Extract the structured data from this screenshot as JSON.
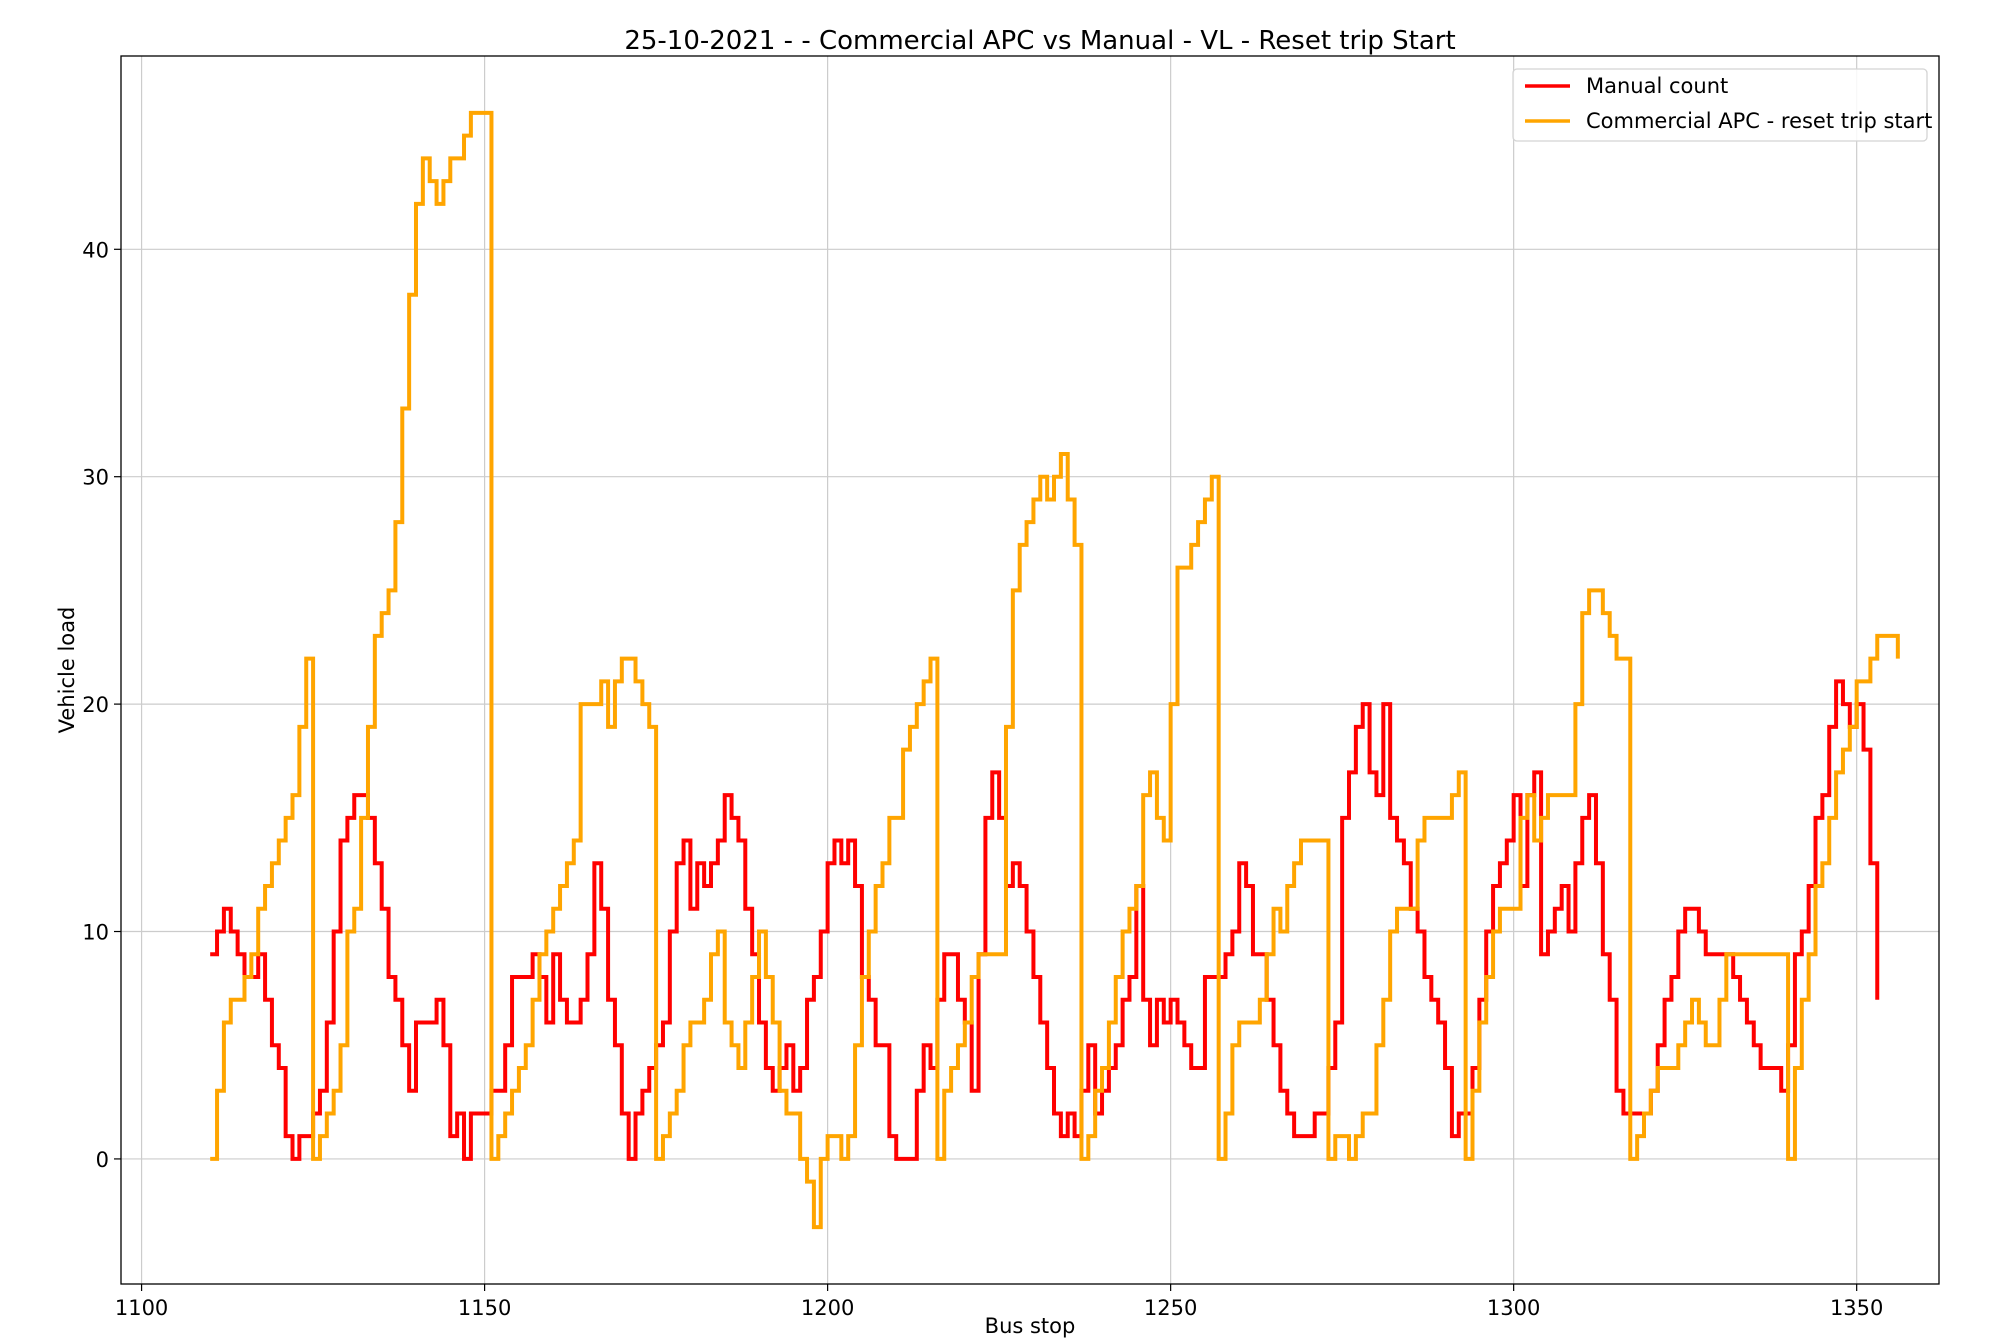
{
  "chart_data": {
    "type": "line",
    "step": true,
    "title": "25-10-2021 - - Commercial APC vs Manual - VL - Reset trip Start",
    "xlabel": "Bus stop",
    "ylabel": "Vehicle load",
    "xlim": [
      1097,
      1362
    ],
    "ylim": [
      -5.5,
      48.5
    ],
    "xticks": [
      1100,
      1150,
      1200,
      1250,
      1300,
      1350
    ],
    "yticks": [
      0,
      10,
      20,
      30,
      40
    ],
    "grid": true,
    "legend_position": "top-right",
    "series": [
      {
        "name": "Manual count",
        "color": "#ff0000",
        "x_start": 1110,
        "values": [
          9,
          10,
          11,
          10,
          9,
          8,
          8,
          9,
          7,
          5,
          4,
          1,
          0,
          1,
          1,
          2,
          3,
          6,
          10,
          14,
          15,
          16,
          16,
          15,
          13,
          11,
          8,
          7,
          5,
          3,
          6,
          6,
          6,
          7,
          5,
          1,
          2,
          0,
          2,
          2,
          2,
          3,
          3,
          5,
          8,
          8,
          8,
          9,
          8,
          6,
          9,
          7,
          6,
          6,
          7,
          9,
          13,
          11,
          7,
          5,
          2,
          0,
          2,
          3,
          4,
          5,
          6,
          10,
          13,
          14,
          11,
          13,
          12,
          13,
          14,
          16,
          15,
          14,
          11,
          9,
          6,
          4,
          3,
          4,
          5,
          3,
          4,
          7,
          8,
          10,
          13,
          14,
          13,
          14,
          12,
          8,
          7,
          5,
          5,
          1,
          0,
          0,
          0,
          3,
          5,
          4,
          7,
          9,
          9,
          7,
          6,
          3,
          9,
          15,
          17,
          15,
          12,
          13,
          12,
          10,
          8,
          6,
          4,
          2,
          1,
          2,
          1,
          3,
          5,
          2,
          3,
          4,
          5,
          7,
          8,
          12,
          7,
          5,
          7,
          6,
          7,
          6,
          5,
          4,
          4,
          8,
          8,
          8,
          9,
          10,
          13,
          12,
          9,
          9,
          7,
          5,
          3,
          2,
          1,
          1,
          1,
          2,
          2,
          4,
          6,
          15,
          17,
          19,
          20,
          17,
          16,
          20,
          15,
          14,
          13,
          11,
          10,
          8,
          7,
          6,
          4,
          1,
          2,
          2,
          4,
          7,
          10,
          12,
          13,
          14,
          16,
          12,
          16,
          17,
          9,
          10,
          11,
          12,
          10,
          13,
          15,
          16,
          13,
          9,
          7,
          3,
          2,
          2,
          2,
          2,
          3,
          5,
          7,
          8,
          10,
          11,
          11,
          10,
          9,
          9,
          9,
          9,
          8,
          7,
          6,
          5,
          4,
          4,
          4,
          3,
          5,
          9,
          10,
          12,
          15,
          16,
          19,
          21,
          20,
          19,
          20,
          18,
          13,
          7
        ]
      },
      {
        "name": "Commercial APC - reset trip start",
        "color": "#ffa500",
        "x_start": 1110,
        "values": [
          0,
          3,
          6,
          7,
          7,
          8,
          9,
          11,
          12,
          13,
          14,
          15,
          16,
          19,
          22,
          0,
          1,
          2,
          3,
          5,
          10,
          11,
          15,
          19,
          23,
          24,
          25,
          28,
          33,
          38,
          42,
          44,
          43,
          42,
          43,
          44,
          44,
          45,
          46,
          46,
          46,
          0,
          1,
          2,
          3,
          4,
          5,
          7,
          9,
          10,
          11,
          12,
          13,
          14,
          20,
          20,
          20,
          21,
          19,
          21,
          22,
          22,
          21,
          20,
          19,
          0,
          1,
          2,
          3,
          5,
          6,
          6,
          7,
          9,
          10,
          6,
          5,
          4,
          6,
          8,
          10,
          8,
          6,
          3,
          2,
          2,
          0,
          -1,
          -3,
          0,
          1,
          1,
          0,
          1,
          5,
          8,
          10,
          12,
          13,
          15,
          15,
          18,
          19,
          20,
          21,
          22,
          0,
          3,
          4,
          5,
          6,
          8,
          9,
          9,
          9,
          9,
          19,
          25,
          27,
          28,
          29,
          30,
          29,
          30,
          31,
          29,
          27,
          0,
          1,
          3,
          4,
          6,
          8,
          10,
          11,
          12,
          16,
          17,
          15,
          14,
          20,
          26,
          26,
          27,
          28,
          29,
          30,
          0,
          2,
          5,
          6,
          6,
          6,
          7,
          9,
          11,
          10,
          12,
          13,
          14,
          14,
          14,
          14,
          0,
          1,
          1,
          0,
          1,
          2,
          2,
          5,
          7,
          10,
          11,
          11,
          11,
          14,
          15,
          15,
          15,
          15,
          16,
          17,
          0,
          3,
          6,
          8,
          10,
          11,
          11,
          11,
          15,
          16,
          14,
          15,
          16,
          16,
          16,
          16,
          20,
          24,
          25,
          25,
          24,
          23,
          22,
          22,
          0,
          1,
          2,
          3,
          4,
          4,
          4,
          5,
          6,
          7,
          6,
          5,
          5,
          7,
          9,
          9,
          9,
          9,
          9,
          9,
          9,
          9,
          9,
          0,
          4,
          7,
          9,
          12,
          13,
          15,
          17,
          18,
          19,
          21,
          21,
          22,
          23,
          23,
          23,
          22
        ]
      }
    ]
  }
}
